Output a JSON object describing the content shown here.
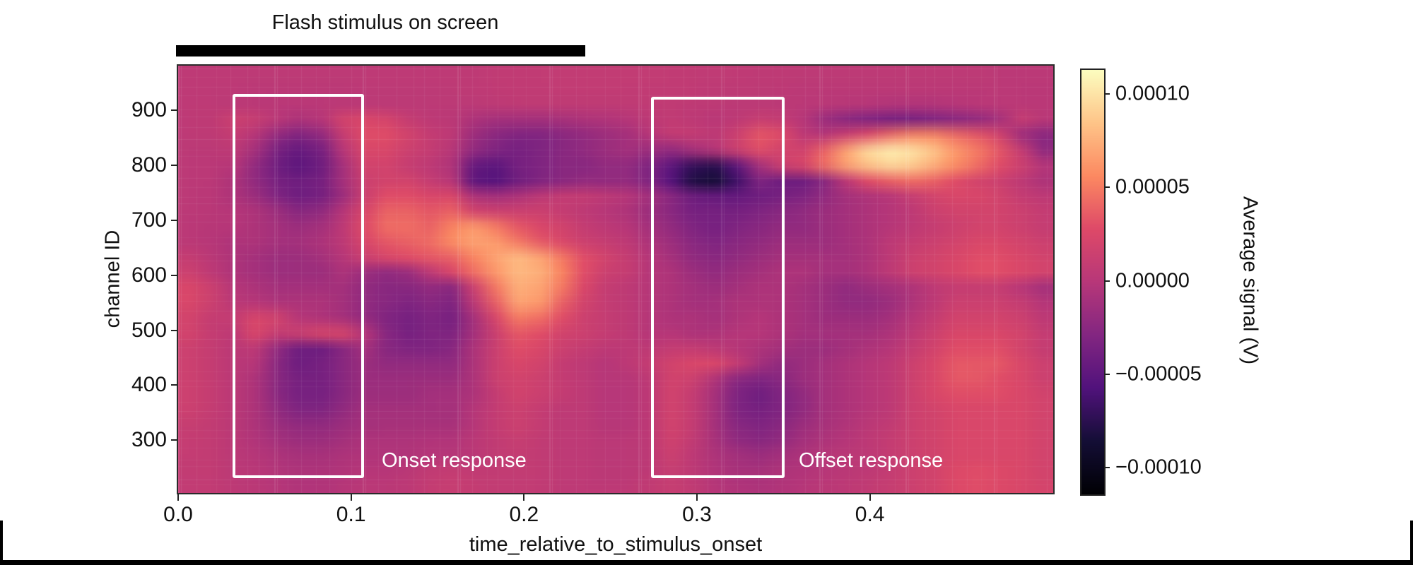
{
  "figure": {
    "title": "Flash stimulus on screen"
  },
  "axes": {
    "x_label": "time_relative_to_stimulus_onset",
    "y_label": "channel ID",
    "x_tick_labels": [
      "0.0",
      "0.1",
      "0.2",
      "0.3",
      "0.4"
    ],
    "y_tick_labels": [
      "900",
      "800",
      "700",
      "600",
      "500",
      "400",
      "300"
    ]
  },
  "colorbar": {
    "label": "Average signal (V)",
    "tick_labels": [
      "0.00010",
      "0.00005",
      "0.00000",
      "−0.00005",
      "−0.00010"
    ],
    "tick_values": [
      0.0001,
      5e-05,
      0.0,
      -5e-05,
      -0.0001
    ]
  },
  "annotations": {
    "onset_label": "Onset response",
    "offset_label": "Offset response"
  },
  "chart_data": {
    "type": "heatmap",
    "title": "Flash stimulus on screen",
    "xlabel": "time_relative_to_stimulus_onset",
    "ylabel": "channel ID",
    "colorbar_label": "Average signal (V)",
    "colormap": "magma",
    "x_range": [
      0.0,
      0.506
    ],
    "y_range": [
      204,
      981
    ],
    "x_ticks": [
      0.0,
      0.1,
      0.2,
      0.3,
      0.4
    ],
    "y_ticks": [
      900,
      800,
      700,
      600,
      500,
      400,
      300
    ],
    "value_range_volts": [
      -0.0001136,
      0.0001136
    ],
    "stimulus_bar": {
      "t_start": 0.0,
      "t_end": 0.234
    },
    "highlight_boxes": [
      {
        "name": "Onset response",
        "t_start": 0.033,
        "t_end": 0.106,
        "ch_start": 236,
        "ch_end": 924
      },
      {
        "name": "Offset response",
        "t_start": 0.275,
        "t_end": 0.349,
        "ch_start": 236,
        "ch_end": 919
      }
    ],
    "grid": {
      "units": "1e-5 V",
      "n_time_bins": 40,
      "n_channel_bins": 28,
      "orientation": "rows from channel 981 (top) to 204 (bottom), columns from t=0 to t=0.506",
      "values": [
        [
          0.5,
          0.5,
          0.5,
          0.5,
          0.5,
          0.5,
          0.5,
          0.5,
          0.5,
          0.5,
          0.5,
          0.5,
          0.5,
          0.6,
          0.7,
          0.7,
          0.8,
          0.8,
          0.8,
          0.8,
          0.8,
          0.8,
          0.8,
          0.7,
          0.7,
          0.7,
          0.6,
          0.6,
          0.5,
          0.5,
          0.5,
          0.5,
          0.5,
          0.5,
          0.5,
          0.5,
          0.5,
          0.4,
          0.4,
          0.4
        ],
        [
          0.5,
          0.5,
          0.5,
          0.4,
          0.4,
          0.4,
          0.4,
          0.4,
          0.5,
          0.5,
          0.5,
          0.5,
          0.5,
          0.6,
          0.7,
          0.8,
          0.8,
          0.9,
          0.9,
          0.9,
          0.8,
          0.8,
          0.8,
          0.7,
          0.6,
          0.6,
          0.5,
          0.5,
          0.4,
          0.4,
          0.4,
          0.4,
          0.4,
          0.4,
          0.4,
          0.4,
          0.4,
          0.4,
          0.3,
          0.3
        ],
        [
          0.5,
          0.5,
          0.4,
          0.3,
          0.2,
          0.2,
          0.3,
          0.3,
          0.4,
          0.4,
          0.4,
          0.4,
          0.4,
          0.4,
          0.5,
          0.6,
          0.6,
          0.6,
          0.6,
          0.6,
          0.6,
          0.7,
          0.7,
          0.6,
          0.5,
          0.4,
          0.4,
          0.4,
          0.3,
          0.2,
          0.1,
          0.0,
          -0.2,
          -0.3,
          -0.2,
          0.0,
          0.2,
          0.3,
          0.3,
          0.2
        ],
        [
          0.5,
          0.6,
          1.5,
          1.2,
          0.2,
          -0.5,
          0.0,
          2.0,
          2.5,
          2.2,
          1.0,
          0.5,
          0.3,
          -0.5,
          -1.0,
          -1.0,
          -1.0,
          -0.8,
          -0.5,
          -0.3,
          0.0,
          0.5,
          0.8,
          0.5,
          0.2,
          0.5,
          1.2,
          1.0,
          0.0,
          -1.5,
          -2.5,
          -3.0,
          -3.5,
          -3.5,
          -3.0,
          -2.5,
          -2.0,
          -1.0,
          1.0,
          0.3
        ],
        [
          0.5,
          0.5,
          1.0,
          0.0,
          -2.0,
          -3.0,
          -2.0,
          1.0,
          3.0,
          3.0,
          2.0,
          1.0,
          0.5,
          -1.5,
          -2.5,
          -3.0,
          -3.0,
          -2.5,
          -2.0,
          -1.5,
          -1.0,
          0.0,
          1.0,
          1.0,
          0.5,
          1.5,
          3.5,
          3.0,
          0.5,
          0.0,
          1.5,
          3.0,
          4.5,
          5.5,
          5.5,
          4.5,
          3.5,
          2.0,
          -1.5,
          -2.5
        ],
        [
          0.4,
          0.4,
          0.5,
          -1.0,
          -3.5,
          -4.5,
          -3.5,
          0.0,
          2.5,
          2.5,
          1.5,
          1.0,
          0.0,
          -2.0,
          -3.0,
          -3.5,
          -3.0,
          -2.5,
          -2.0,
          -1.5,
          -1.0,
          -1.5,
          -2.0,
          -1.0,
          0.0,
          1.5,
          3.0,
          2.0,
          2.0,
          4.0,
          7.0,
          9.5,
          10.5,
          10.0,
          8.5,
          6.5,
          5.0,
          3.5,
          1.0,
          -2.0
        ],
        [
          0.4,
          0.3,
          0.0,
          -2.0,
          -4.0,
          -5.0,
          -4.0,
          -1.0,
          2.0,
          2.0,
          1.0,
          0.5,
          -0.5,
          -4.5,
          -5.0,
          -3.5,
          -3.0,
          -2.5,
          -2.5,
          -2.0,
          -2.0,
          -3.0,
          -5.0,
          -7.0,
          -7.5,
          -5.0,
          -1.0,
          1.5,
          2.5,
          4.5,
          7.0,
          8.5,
          9.5,
          9.0,
          7.5,
          6.0,
          4.5,
          3.0,
          1.5,
          0.0
        ],
        [
          0.4,
          0.3,
          -0.5,
          -2.0,
          -3.5,
          -4.0,
          -3.5,
          -1.0,
          1.5,
          2.0,
          2.0,
          1.0,
          0.0,
          -5.0,
          -5.5,
          -4.0,
          -3.0,
          -2.5,
          -2.0,
          -2.0,
          -2.0,
          -3.0,
          -5.5,
          -8.0,
          -8.5,
          -6.5,
          -3.0,
          -4.0,
          -4.0,
          -2.5,
          0.5,
          3.0,
          4.0,
          4.5,
          4.0,
          3.0,
          2.0,
          1.5,
          0.5,
          -0.5
        ],
        [
          0.4,
          0.2,
          -0.5,
          -1.5,
          -3.0,
          -4.0,
          -3.5,
          -1.5,
          1.5,
          3.0,
          3.0,
          2.5,
          2.5,
          -0.5,
          -1.0,
          -0.5,
          0.5,
          1.0,
          1.0,
          0.5,
          0.0,
          -1.0,
          -2.5,
          -4.0,
          -4.5,
          -4.5,
          -4.0,
          -3.5,
          -3.0,
          -2.0,
          -1.0,
          -0.5,
          0.0,
          1.0,
          2.0,
          2.5,
          2.5,
          2.0,
          1.0,
          0.5
        ],
        [
          0.4,
          0.2,
          0.0,
          -0.5,
          -1.5,
          -2.5,
          -2.0,
          0.0,
          2.5,
          4.0,
          4.0,
          3.5,
          4.0,
          2.0,
          1.5,
          1.5,
          1.5,
          1.0,
          0.5,
          0.0,
          -0.5,
          -1.5,
          -2.5,
          -3.5,
          -3.5,
          -3.5,
          -3.0,
          -2.5,
          -2.0,
          -1.5,
          -1.0,
          -0.5,
          0.0,
          0.5,
          1.5,
          2.0,
          2.0,
          2.0,
          1.5,
          1.0
        ],
        [
          0.3,
          0.1,
          0.0,
          -0.5,
          -1.0,
          -1.5,
          -1.0,
          0.5,
          3.0,
          4.5,
          4.5,
          4.0,
          5.5,
          6.5,
          5.0,
          3.5,
          2.5,
          2.0,
          1.0,
          0.5,
          0.0,
          -1.0,
          -2.0,
          -3.0,
          -3.5,
          -3.0,
          -2.5,
          -2.0,
          -2.0,
          -1.5,
          -1.0,
          -0.5,
          0.0,
          0.5,
          1.0,
          1.5,
          2.0,
          2.0,
          1.5,
          1.0
        ],
        [
          0.3,
          0.0,
          -0.5,
          -0.5,
          -1.0,
          -1.0,
          -0.5,
          0.5,
          2.5,
          3.5,
          4.0,
          4.5,
          6.0,
          7.0,
          6.5,
          5.0,
          3.5,
          2.5,
          1.5,
          1.0,
          0.5,
          -0.5,
          -1.5,
          -2.5,
          -3.0,
          -2.5,
          -2.0,
          -1.5,
          -1.5,
          -1.5,
          -1.0,
          -0.5,
          0.5,
          1.0,
          1.5,
          2.0,
          2.5,
          2.5,
          2.0,
          1.5
        ],
        [
          1.0,
          0.3,
          -0.5,
          -1.0,
          -1.5,
          -1.5,
          -1.0,
          0.0,
          1.5,
          2.5,
          3.0,
          3.5,
          4.0,
          5.5,
          7.0,
          8.0,
          7.0,
          5.0,
          3.0,
          2.0,
          1.0,
          0.0,
          -1.0,
          -2.0,
          -2.5,
          -2.0,
          -1.5,
          -1.0,
          -1.0,
          -1.0,
          -1.0,
          -0.5,
          0.5,
          1.5,
          2.0,
          2.5,
          3.0,
          3.0,
          2.5,
          2.0
        ],
        [
          1.5,
          0.5,
          -0.5,
          -1.0,
          -1.5,
          -1.5,
          -1.5,
          -0.5,
          -1.5,
          -2.0,
          -1.5,
          0.5,
          2.5,
          4.5,
          6.5,
          8.0,
          7.5,
          5.5,
          3.0,
          1.5,
          1.0,
          0.0,
          -0.5,
          -1.5,
          -2.0,
          -1.5,
          -1.0,
          -0.5,
          -0.5,
          -1.0,
          -1.0,
          -0.5,
          0.5,
          1.5,
          2.0,
          2.5,
          3.0,
          3.0,
          2.5,
          2.0
        ],
        [
          2.5,
          1.5,
          0.0,
          -0.5,
          -1.0,
          -1.0,
          -1.0,
          -1.0,
          -2.0,
          -2.5,
          -2.5,
          -2.0,
          -2.5,
          1.5,
          5.0,
          7.5,
          7.0,
          5.0,
          2.5,
          1.0,
          0.5,
          0.0,
          -0.5,
          -1.0,
          -1.5,
          -1.0,
          -0.5,
          -0.5,
          -1.0,
          -1.5,
          -2.0,
          -1.5,
          -1.0,
          -0.5,
          0.5,
          1.0,
          1.0,
          1.0,
          0.0,
          -1.0
        ],
        [
          2.5,
          1.5,
          0.3,
          0.0,
          -0.5,
          -0.5,
          -0.5,
          -1.0,
          -2.0,
          -2.5,
          -3.0,
          -2.5,
          -3.0,
          0.5,
          4.0,
          7.0,
          6.5,
          4.0,
          2.0,
          1.0,
          0.5,
          0.0,
          -0.5,
          -1.0,
          -1.0,
          -0.5,
          -0.5,
          -0.5,
          -1.0,
          -1.5,
          -2.0,
          -2.0,
          -1.5,
          -0.5,
          0.5,
          1.5,
          1.5,
          1.5,
          1.0,
          0.0
        ],
        [
          2.0,
          1.0,
          1.0,
          2.5,
          2.0,
          0.0,
          -0.5,
          -1.0,
          -2.0,
          -3.0,
          -3.5,
          -3.0,
          -3.5,
          -1.0,
          2.5,
          5.0,
          4.5,
          3.0,
          1.5,
          1.0,
          0.5,
          0.0,
          -0.5,
          -0.5,
          -1.0,
          -0.5,
          0.0,
          -0.5,
          -1.0,
          -1.5,
          -1.5,
          -1.5,
          -1.0,
          0.0,
          1.0,
          2.0,
          2.0,
          2.0,
          1.5,
          0.5
        ],
        [
          2.0,
          1.0,
          0.5,
          2.5,
          1.0,
          1.5,
          2.5,
          2.5,
          0.0,
          -2.5,
          -3.5,
          -3.0,
          -3.0,
          -1.0,
          1.5,
          3.5,
          3.0,
          2.0,
          1.5,
          1.0,
          0.5,
          0.0,
          0.0,
          -0.5,
          -0.5,
          0.0,
          0.0,
          -0.5,
          -1.0,
          -1.0,
          -1.0,
          -1.0,
          -0.5,
          0.5,
          1.5,
          2.5,
          2.5,
          2.5,
          2.0,
          1.0
        ],
        [
          1.5,
          1.0,
          0.3,
          0.5,
          -2.0,
          -4.0,
          -4.0,
          -2.5,
          -1.0,
          -2.5,
          -3.0,
          -3.0,
          -2.5,
          -0.5,
          1.5,
          3.0,
          2.5,
          1.5,
          1.0,
          0.5,
          0.5,
          0.5,
          1.0,
          1.0,
          0.5,
          0.0,
          -0.5,
          -1.0,
          -1.5,
          -1.5,
          -1.0,
          -0.5,
          0.0,
          1.0,
          2.0,
          3.0,
          3.0,
          3.0,
          2.0,
          1.0
        ],
        [
          1.5,
          1.0,
          0.3,
          0.0,
          -2.5,
          -4.0,
          -3.5,
          -2.5,
          -1.5,
          -2.0,
          -2.0,
          -2.0,
          -2.0,
          -0.5,
          1.5,
          2.5,
          2.0,
          1.0,
          0.5,
          0.0,
          0.5,
          1.0,
          2.0,
          2.5,
          2.5,
          1.0,
          -1.0,
          -2.0,
          -1.5,
          -1.0,
          -0.5,
          0.0,
          0.5,
          1.5,
          2.5,
          3.5,
          3.5,
          3.5,
          2.5,
          1.5
        ],
        [
          1.5,
          1.0,
          0.3,
          -0.5,
          -2.5,
          -3.5,
          -3.5,
          -2.5,
          -1.5,
          -1.5,
          -1.5,
          -1.5,
          -1.5,
          -0.5,
          1.5,
          2.0,
          1.5,
          1.0,
          0.5,
          0.0,
          0.0,
          0.5,
          2.0,
          1.5,
          -0.5,
          -2.5,
          -3.0,
          -2.5,
          -1.5,
          -1.0,
          -0.5,
          0.0,
          0.5,
          1.5,
          2.5,
          3.5,
          3.5,
          3.0,
          2.5,
          1.5
        ],
        [
          1.5,
          1.0,
          0.3,
          -0.5,
          -2.5,
          -3.5,
          -3.5,
          -2.5,
          -1.5,
          -1.5,
          -1.5,
          -1.0,
          -1.0,
          -0.5,
          1.0,
          2.0,
          1.5,
          1.0,
          0.5,
          0.0,
          0.0,
          0.5,
          2.0,
          1.0,
          -1.0,
          -3.0,
          -4.0,
          -3.0,
          -2.0,
          -1.0,
          -0.5,
          0.0,
          0.5,
          1.5,
          2.5,
          3.0,
          3.0,
          3.0,
          2.5,
          2.0
        ],
        [
          1.5,
          1.0,
          0.3,
          -0.5,
          -2.0,
          -3.0,
          -3.0,
          -2.0,
          -1.0,
          -1.0,
          -1.0,
          -1.0,
          -1.0,
          0.0,
          1.0,
          1.5,
          1.0,
          0.5,
          0.5,
          0.0,
          0.0,
          0.5,
          2.0,
          1.0,
          -1.0,
          -3.0,
          -3.5,
          -3.0,
          -2.0,
          -1.0,
          -0.5,
          0.0,
          0.5,
          1.5,
          2.0,
          2.5,
          2.5,
          2.5,
          2.5,
          2.0
        ],
        [
          1.2,
          0.8,
          0.3,
          -0.5,
          -1.5,
          -2.0,
          -2.0,
          -1.5,
          -1.0,
          -0.8,
          -0.8,
          -0.8,
          -0.8,
          0.0,
          1.0,
          1.5,
          1.0,
          0.5,
          0.5,
          0.0,
          0.0,
          0.5,
          2.0,
          1.0,
          -1.0,
          -2.5,
          -3.0,
          -2.5,
          -1.5,
          -0.8,
          -0.3,
          0.3,
          0.8,
          1.5,
          2.0,
          2.5,
          2.5,
          2.5,
          2.5,
          2.0
        ],
        [
          1.0,
          0.8,
          0.3,
          -0.3,
          -1.0,
          -1.5,
          -1.5,
          -1.0,
          -0.5,
          -0.5,
          -0.5,
          -0.3,
          -0.3,
          0.3,
          0.8,
          1.2,
          0.8,
          0.5,
          0.5,
          0.3,
          0.3,
          0.5,
          1.8,
          0.8,
          -0.8,
          -2.0,
          -2.5,
          -2.0,
          -1.0,
          -0.5,
          0.0,
          0.5,
          1.0,
          1.5,
          2.0,
          2.5,
          2.5,
          2.5,
          2.5,
          2.0
        ],
        [
          1.0,
          0.8,
          0.4,
          0.0,
          -0.5,
          -0.8,
          -0.8,
          -0.5,
          -0.3,
          -0.3,
          -0.3,
          0.0,
          0.0,
          0.3,
          0.8,
          1.0,
          0.8,
          0.5,
          0.5,
          0.3,
          0.3,
          0.5,
          1.5,
          0.5,
          -0.5,
          -1.0,
          -1.5,
          -1.0,
          -0.5,
          0.0,
          0.3,
          0.5,
          1.0,
          1.5,
          2.0,
          2.5,
          2.5,
          2.5,
          2.5,
          2.0
        ],
        [
          0.8,
          0.8,
          0.4,
          0.2,
          -0.2,
          -0.5,
          -0.5,
          -0.3,
          0.0,
          0.0,
          0.3,
          0.8,
          1.0,
          0.8,
          0.8,
          0.8,
          0.8,
          0.5,
          0.5,
          0.3,
          0.3,
          0.5,
          1.2,
          0.5,
          -0.3,
          -0.8,
          -0.8,
          -0.5,
          -0.3,
          0.0,
          0.3,
          0.5,
          1.0,
          1.5,
          2.0,
          2.8,
          3.0,
          2.8,
          2.5,
          2.0
        ],
        [
          0.8,
          0.8,
          0.5,
          0.3,
          0.0,
          -0.3,
          -0.3,
          0.0,
          0.3,
          0.3,
          0.5,
          1.0,
          1.2,
          1.0,
          0.8,
          0.8,
          0.8,
          0.5,
          0.5,
          0.5,
          0.5,
          0.8,
          1.2,
          0.8,
          0.0,
          -0.3,
          -0.5,
          -0.3,
          0.0,
          0.3,
          0.5,
          0.8,
          1.2,
          1.5,
          2.0,
          2.8,
          3.0,
          2.8,
          2.5,
          2.2
        ]
      ]
    }
  }
}
